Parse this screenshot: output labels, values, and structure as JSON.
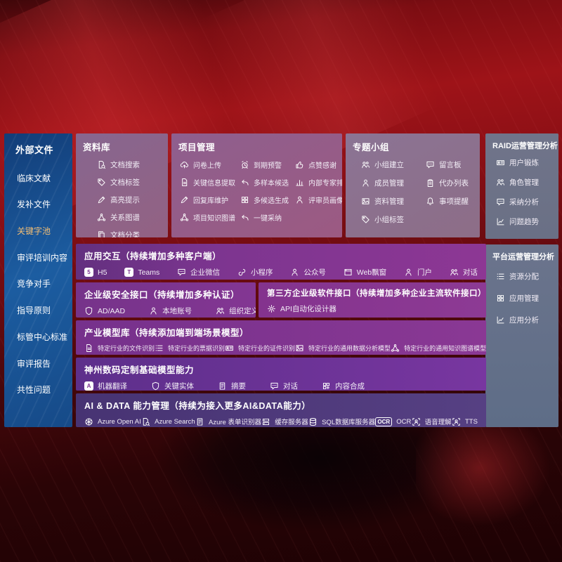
{
  "colors": {
    "background_red": "#8e1016",
    "sidebar_blue": "#1b579b",
    "panel_mauve": "#8d6590",
    "panel_gray": "#6b7288",
    "row_purple": "#7a3190",
    "row_indigo": "#4e3578",
    "highlight_gold": "#f2bd74",
    "text_white": "#ffffff"
  },
  "sidebar": {
    "title": "外部文件",
    "items": [
      {
        "label": "临床文献"
      },
      {
        "label": "发补文件"
      },
      {
        "label": "关键字池",
        "color": "#f2bd74"
      },
      {
        "label": "审评培训内容"
      },
      {
        "label": "竞争对手"
      },
      {
        "label": "指导原则"
      },
      {
        "label": "标管中心标准"
      },
      {
        "label": "审评报告"
      },
      {
        "label": "共性问题"
      }
    ]
  },
  "panels": {
    "repository": {
      "title": "资料库",
      "items": [
        {
          "label": "文档搜索",
          "icon": "doc-search-icon"
        },
        {
          "label": "文档标签",
          "icon": "tag-icon"
        },
        {
          "label": "高亮提示",
          "icon": "pen-icon"
        },
        {
          "label": "关系图谱",
          "icon": "graph-icon"
        },
        {
          "label": "文档分类",
          "icon": "docs-icon"
        }
      ]
    },
    "project": {
      "title": "项目管理",
      "items": [
        {
          "label": "问卷上传",
          "icon": "cloud-up-icon"
        },
        {
          "label": "到期预警",
          "icon": "alarm-icon"
        },
        {
          "label": "点赞感谢",
          "icon": "thumb-icon"
        },
        {
          "label": "关键信息提取",
          "icon": "doc-icon"
        },
        {
          "label": "多样本候选",
          "icon": "reply-icon"
        },
        {
          "label": "内部专家排名",
          "icon": "podium-icon"
        },
        {
          "label": "回复库维护",
          "icon": "pen-icon"
        },
        {
          "label": "多候选生成",
          "icon": "grid-icon"
        },
        {
          "label": "评审员画像",
          "icon": "person-icon"
        },
        {
          "label": "项目知识图谱",
          "icon": "graph-icon"
        },
        {
          "label": "一键采纳",
          "icon": "reply-icon"
        }
      ]
    },
    "group": {
      "title": "专题小组",
      "items": [
        {
          "label": "小组建立",
          "icon": "people-icon"
        },
        {
          "label": "留言板",
          "icon": "chat-icon"
        },
        {
          "label": "成员管理",
          "icon": "person-icon"
        },
        {
          "label": "代办列表",
          "icon": "clipboard-icon"
        },
        {
          "label": "资料管理",
          "icon": "image-icon"
        },
        {
          "label": "事项提醒",
          "icon": "bell-icon"
        },
        {
          "label": "小组标签",
          "icon": "tag-icon"
        }
      ]
    },
    "raid": {
      "title": "RAID运营管理分析",
      "items": [
        {
          "label": "用户锻炼",
          "icon": "idcard-icon"
        },
        {
          "label": "角色管理",
          "icon": "people-icon"
        },
        {
          "label": "采纳分析",
          "icon": "chat-icon"
        },
        {
          "label": "问题趋势",
          "icon": "chart-icon"
        }
      ]
    },
    "platform": {
      "title": "平台运营管理分析",
      "items": [
        {
          "label": "资源分配",
          "icon": "list-icon"
        },
        {
          "label": "应用管理",
          "icon": "grid-icon"
        },
        {
          "label": "应用分析",
          "icon": "chart-icon"
        }
      ]
    }
  },
  "rows": {
    "interaction": {
      "title": "应用交互（持续增加多种客户端）",
      "items": [
        {
          "label": "H5",
          "icon": "h5-icon"
        },
        {
          "label": "Teams",
          "icon": "teams-icon"
        },
        {
          "label": "企业微信",
          "icon": "chat-icon"
        },
        {
          "label": "小程序",
          "icon": "scurve-icon"
        },
        {
          "label": "公众号",
          "icon": "person-icon"
        },
        {
          "label": "Web飘窗",
          "icon": "window-icon"
        },
        {
          "label": "门户",
          "icon": "person-icon"
        },
        {
          "label": "对话",
          "icon": "people-icon"
        }
      ]
    },
    "security": {
      "title": "企业级安全接口（持续增加多种认证）",
      "items": [
        {
          "label": "AD/AAD",
          "icon": "shield-icon"
        },
        {
          "label": "本地账号",
          "icon": "person-icon"
        },
        {
          "label": "组织定义",
          "icon": "people-icon"
        }
      ]
    },
    "third_party": {
      "title": "第三方企业级软件接口（持续增加多种企业主流软件接口）",
      "items": [
        {
          "label": "API自动化设计器",
          "icon": "gear-icon"
        }
      ]
    },
    "industry_models": {
      "title": "产业模型库（持续添加端到端场景模型）",
      "items": [
        {
          "label": "特定行业的文件识别",
          "icon": "doc-icon"
        },
        {
          "label": "特定行业的票据识别",
          "icon": "list-icon"
        },
        {
          "label": "特定行业的证件识别",
          "icon": "idcard-icon"
        },
        {
          "label": "特定行业的通用数据分析模型",
          "icon": "image-icon"
        },
        {
          "label": "特定行业的通用知识图谱模型",
          "icon": "graph-icon"
        }
      ]
    },
    "base_models": {
      "title": "神州数码定制基础模型能力",
      "items": [
        {
          "label": "机器翻译",
          "icon": "translate-icon"
        },
        {
          "label": "关键实体",
          "icon": "shield-icon"
        },
        {
          "label": "摘要",
          "icon": "form-icon"
        },
        {
          "label": "对话",
          "icon": "chat-icon"
        },
        {
          "label": "内容合成",
          "icon": "puzzle-icon"
        }
      ]
    },
    "ai_data": {
      "title": "AI & DATA 能力管理（持续为接入更多AI&DATA能力）",
      "items": [
        {
          "label": "Azure Open AI",
          "icon": "openai-icon"
        },
        {
          "label": "Azure Search",
          "icon": "doc-search-icon"
        },
        {
          "label": "Azure 表单识别器",
          "icon": "form-icon"
        },
        {
          "label": "缓存服务器",
          "icon": "server-icon"
        },
        {
          "label": "SQL数据库服务器",
          "icon": "database-icon"
        },
        {
          "label": "OCR",
          "icon": "ocr-icon"
        },
        {
          "label": "语音理解",
          "icon": "voice-icon"
        },
        {
          "label": "TTS",
          "icon": "voice-icon"
        }
      ]
    }
  }
}
